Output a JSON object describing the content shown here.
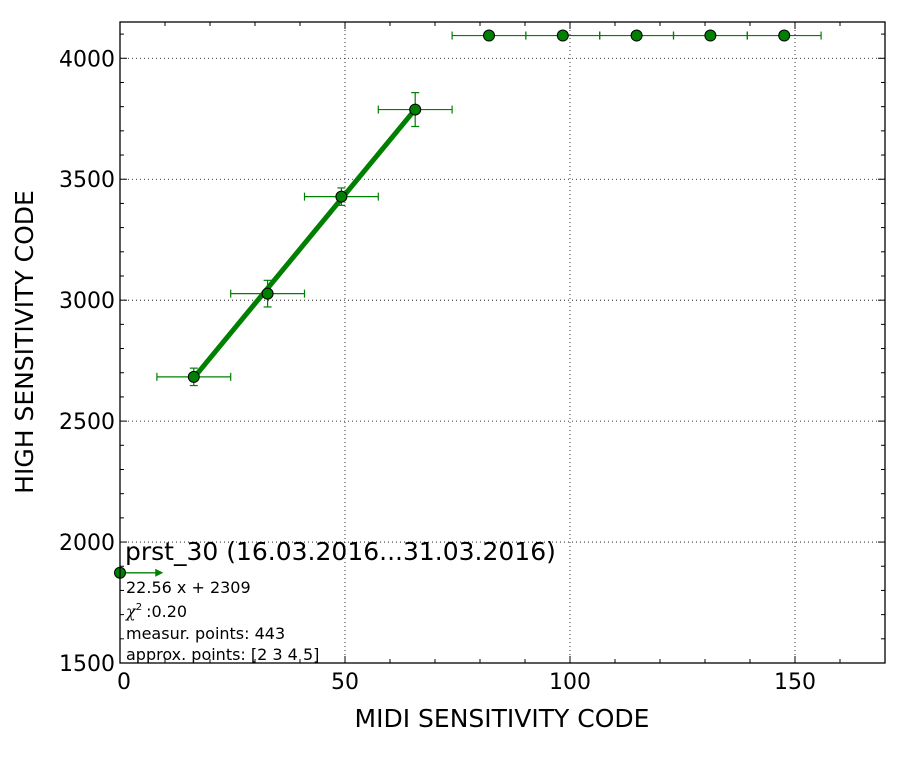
{
  "chart_data": {
    "type": "scatter",
    "title": "",
    "xlabel": "MIDI SENSITIVITY CODE",
    "ylabel": "HIGH SENSITIVITY CODE",
    "xlim": [
      0,
      170
    ],
    "ylim": [
      1500,
      4150
    ],
    "xticks": [
      0,
      50,
      100,
      150
    ],
    "yticks": [
      1500,
      2000,
      2500,
      3000,
      3500,
      4000
    ],
    "grid": true,
    "series": [
      {
        "type": "scatter-errorbar",
        "color": "#008000",
        "points": [
          {
            "x": 0,
            "y": 1873,
            "xerr_plus": 8.5
          },
          {
            "x": 16.4,
            "y": 2683,
            "xerr": 8.2,
            "yerr": 36
          },
          {
            "x": 32.8,
            "y": 3027,
            "xerr": 8.2,
            "yerr": 55
          },
          {
            "x": 49.2,
            "y": 3428,
            "xerr": 8.2,
            "yerr": 36
          },
          {
            "x": 65.6,
            "y": 3788,
            "xerr": 8.2,
            "yerr": 70
          },
          {
            "x": 82.0,
            "y": 4094,
            "xerr": 8.2
          },
          {
            "x": 98.4,
            "y": 4094,
            "xerr": 8.2
          },
          {
            "x": 114.8,
            "y": 4094,
            "xerr": 8.2
          },
          {
            "x": 131.2,
            "y": 4094,
            "xerr": 8.2
          },
          {
            "x": 147.6,
            "y": 4094,
            "xerr": 8.2
          }
        ]
      },
      {
        "type": "fit-line",
        "color": "#008000",
        "slope": 22.56,
        "intercept": 2309,
        "x": [
          16.4,
          65.6
        ]
      }
    ]
  },
  "annotation": {
    "title": "prst_30 (16.03.2016...31.03.2016)",
    "fit_equation": "22.56 x + 2309",
    "chi2_symbol": "χ",
    "chi2_sup": "2",
    "chi2_value": ":0.20",
    "measured_points": "measur. points: 443",
    "approx_points": "approx. points: [2 3 4 5]"
  }
}
